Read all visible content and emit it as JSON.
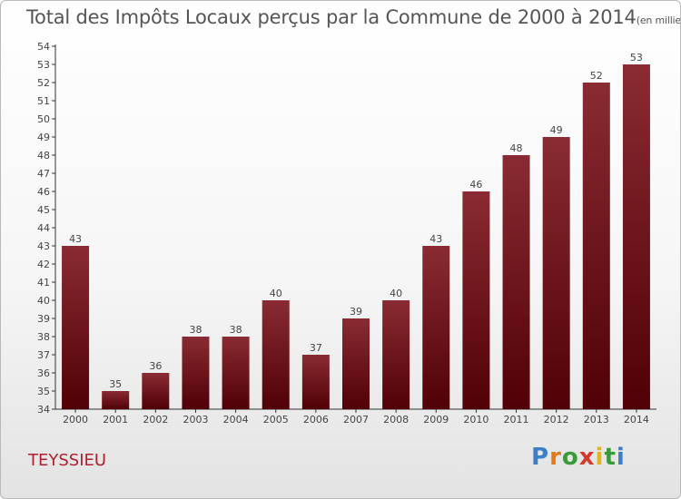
{
  "title": "Total des Impôts Locaux perçus par la Commune de 2000 à 2014",
  "title_unit": "(en milliers d'€)",
  "commune": "TEYSSIEU",
  "logo": "Proxiti",
  "colors": {
    "bar": "#6b0f16",
    "axis": "#333333",
    "commune": "#b01f2e"
  },
  "chart_data": {
    "type": "bar",
    "title": "Total des Impôts Locaux perçus par la Commune de 2000 à 2014",
    "ylabel": "",
    "xlabel": "",
    "categories": [
      "2000",
      "2001",
      "2002",
      "2003",
      "2004",
      "2005",
      "2006",
      "2007",
      "2008",
      "2009",
      "2010",
      "2011",
      "2012",
      "2013",
      "2014"
    ],
    "values": [
      43,
      35,
      36,
      38,
      38,
      40,
      37,
      39,
      40,
      43,
      46,
      48,
      49,
      52,
      53
    ],
    "ylim": [
      34,
      54
    ],
    "grid": false
  }
}
